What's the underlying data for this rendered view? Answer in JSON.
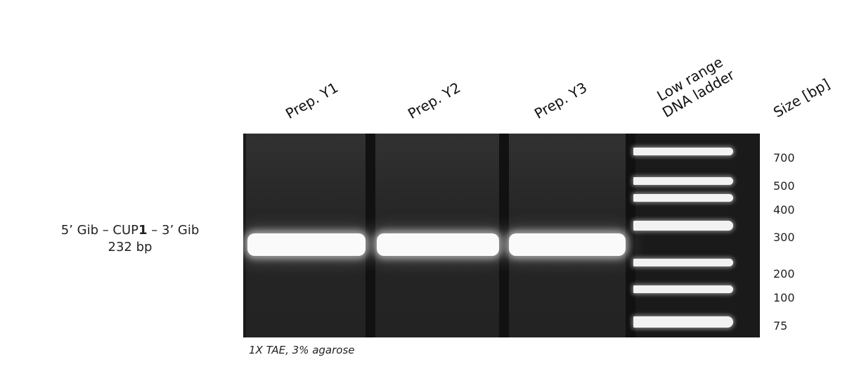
{
  "lanes": [
    {
      "label": "Prep. Y1"
    },
    {
      "label": "Prep. Y2"
    },
    {
      "label": "Prep. Y3"
    }
  ],
  "ladder": {
    "label_line1": "Low range",
    "label_line2": "DNA ladder"
  },
  "size_header": "Size [bp]",
  "size_marks": [
    "700",
    "500",
    "400",
    "300",
    "200",
    "100",
    "75"
  ],
  "sample": {
    "name_prefix": "5’ Gib – CUP",
    "name_bold": "1",
    "name_suffix": " – 3’ Gib",
    "size": "232 bp"
  },
  "footer": "1X TAE, 3% agarose"
}
